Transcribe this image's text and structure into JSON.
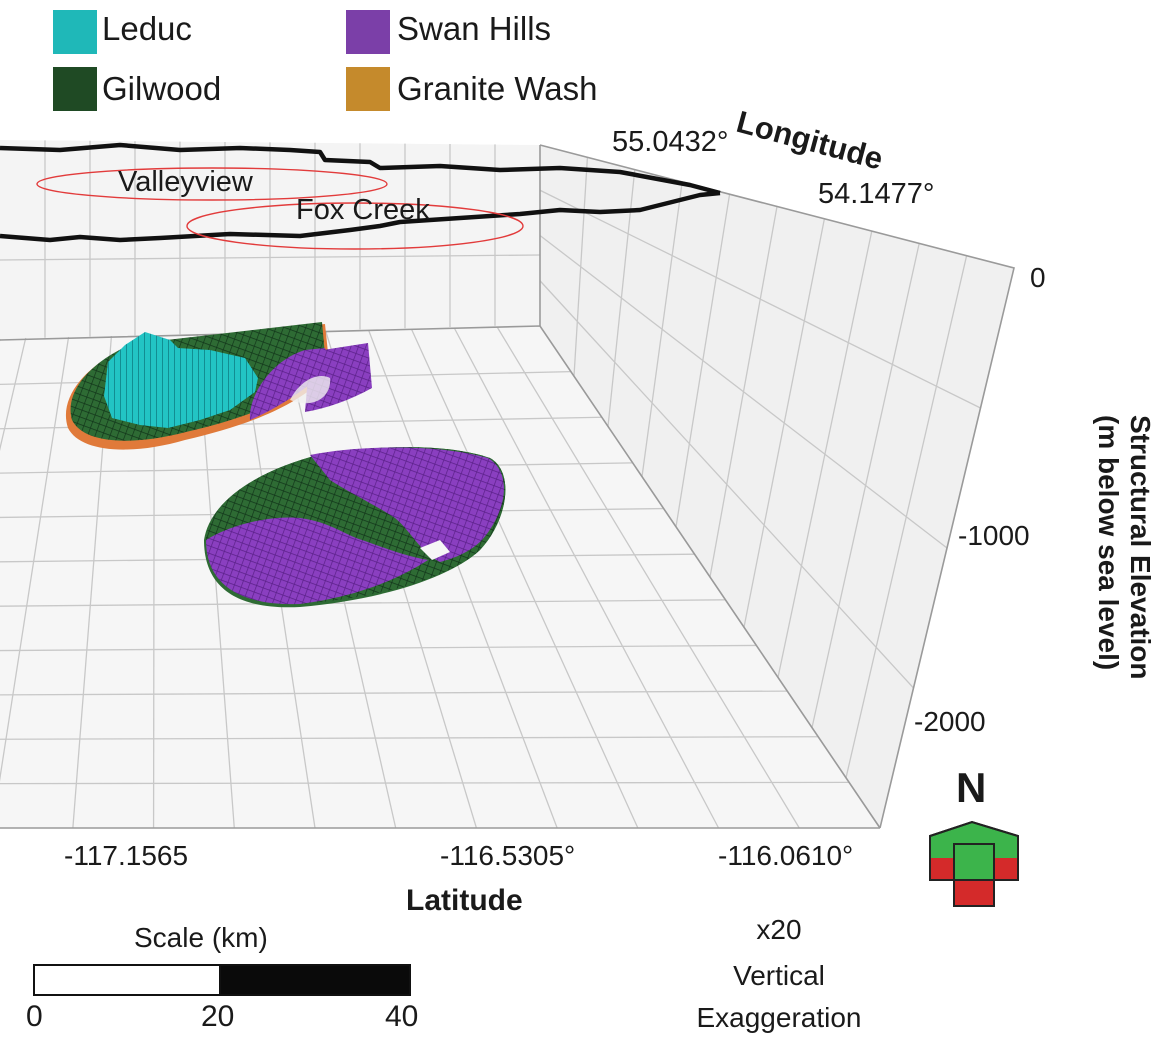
{
  "legend": {
    "items": [
      {
        "label": "Leduc",
        "color": "#1fb8b8"
      },
      {
        "label": "Swan Hills",
        "color": "#7b3fa8"
      },
      {
        "label": "Gilwood",
        "color": "#1f4a24"
      },
      {
        "label": "Granite Wash",
        "color": "#c58a2c"
      }
    ]
  },
  "axes": {
    "longitude_title": "Longitude",
    "longitude_ticks": [
      "55.0432°",
      "54.1477°"
    ],
    "elevation_title_line1": "Structural Elevation",
    "elevation_title_line2": "(m below sea level)",
    "elevation_ticks": [
      "0",
      "-1000",
      "-2000"
    ],
    "latitude_title": "Latitude",
    "latitude_ticks": [
      "-117.1565",
      "-116.5305°",
      "-116.0610°"
    ]
  },
  "places": [
    "Valleyview",
    "Fox Creek"
  ],
  "compass": {
    "label": "N"
  },
  "scale_bar": {
    "title": "Scale (km)",
    "ticks": [
      "0",
      "20",
      "40"
    ]
  },
  "exaggeration": {
    "line1": "x20",
    "line2": "Vertical",
    "line3": "Exaggeration"
  },
  "colors": {
    "grid": "#c8c8c8",
    "panel": "#f3f3f3",
    "boundary": "#111111",
    "place_ring": "#e23b3b",
    "compass_green": "#3cb44b",
    "compass_red": "#d42a2a",
    "orange_base": "#e07a3a"
  }
}
